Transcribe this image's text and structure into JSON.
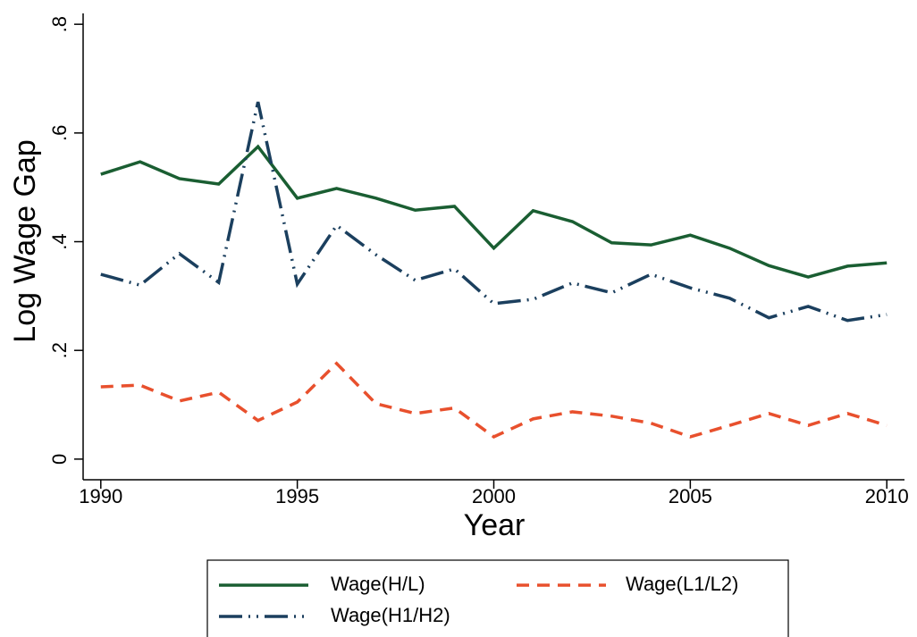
{
  "chart_data": {
    "type": "line",
    "x_label": "Year",
    "y_label": "Log Wage Gap",
    "x": [
      1990,
      1991,
      1992,
      1993,
      1994,
      1995,
      1996,
      1997,
      1998,
      1999,
      2000,
      2001,
      2002,
      2003,
      2004,
      2005,
      2006,
      2007,
      2008,
      2009,
      2010
    ],
    "series": [
      {
        "name": "Wage(H/L)",
        "color": "#1a5e32",
        "dash": "solid",
        "values": [
          0.524,
          0.547,
          0.516,
          0.506,
          0.575,
          0.48,
          0.498,
          0.48,
          0.458,
          0.465,
          0.388,
          0.457,
          0.437,
          0.398,
          0.394,
          0.412,
          0.388,
          0.356,
          0.335,
          0.355,
          0.361
        ]
      },
      {
        "name": "Wage(L1/L2)",
        "color": "#e8502d",
        "dash": "dash",
        "values": [
          0.133,
          0.136,
          0.107,
          0.123,
          0.071,
          0.105,
          0.176,
          0.102,
          0.084,
          0.094,
          0.041,
          0.074,
          0.087,
          0.079,
          0.066,
          0.041,
          0.062,
          0.084,
          0.062,
          0.084,
          0.062
        ]
      },
      {
        "name": "Wage(H1/H2)",
        "color": "#1b3f5e",
        "dash": "dashdotdot",
        "values": [
          0.34,
          0.32,
          0.378,
          0.325,
          0.657,
          0.322,
          0.43,
          0.376,
          0.329,
          0.35,
          0.286,
          0.294,
          0.324,
          0.306,
          0.34,
          0.315,
          0.296,
          0.26,
          0.281,
          0.255,
          0.266
        ]
      }
    ],
    "xlim": [
      1989.55,
      2010.45
    ],
    "xticks": [
      1990,
      1995,
      2000,
      2005,
      2010
    ],
    "ylim": [
      -0.038,
      0.82
    ],
    "yticks": [
      0,
      {
        "value": 0.2,
        "label": ".2"
      },
      {
        "value": 0.4,
        "label": ".4"
      },
      {
        "value": 0.6,
        "label": ".6"
      },
      {
        "value": 0.8,
        "label": ".8"
      }
    ],
    "grid": false,
    "legend_position": "bottom",
    "legend_columns": 2
  }
}
